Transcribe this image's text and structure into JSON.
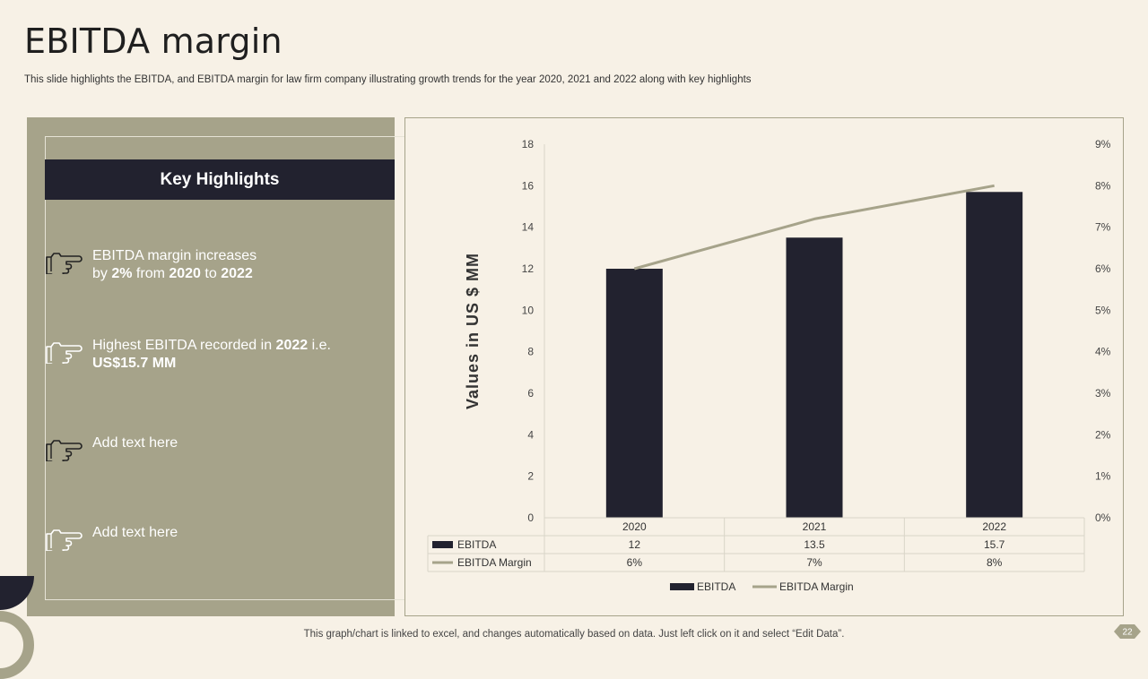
{
  "page": {
    "title": "EBITDA margin",
    "subtitle": "This slide highlights the EBITDA,  and EBITDA  margin for law firm company illustrating growth trends for the year 2020, 2021 and 2022 along with key highlights",
    "footer": "This graph/chart is linked to excel,  and changes automatically based on data. Just left click on it and select “Edit Data”.",
    "page_number": "22"
  },
  "highlights": {
    "heading": "Key Highlights",
    "items": [
      {
        "icon": "pointing-hand-icon",
        "line1_pre": "EBITDA margin increases",
        "line2_pre": "by ",
        "b1": "2%",
        "mid": " from ",
        "b2": "2020",
        "mid2": " to ",
        "b3": "2022"
      },
      {
        "icon": "pointing-hand-icon",
        "line1_pre": "Highest EBITDA recorded in ",
        "b1": "2022",
        "line1_post": " i.e.",
        "b2": "US$15.7 MM"
      },
      {
        "icon": "pointing-hand-icon",
        "text": "Add text here"
      },
      {
        "icon": "pointing-hand-icon",
        "text": "Add text here"
      }
    ]
  },
  "colors": {
    "dark": "#22222f",
    "olive": "#a6a38a",
    "background": "#f7f1e6"
  },
  "chart_data": {
    "type": "bar",
    "categories": [
      "2020",
      "2021",
      "2022"
    ],
    "series": [
      {
        "name": "EBITDA",
        "kind": "bar",
        "axis": "left",
        "values": [
          12,
          13.5,
          15.7
        ],
        "labels": [
          "12",
          "13.5",
          "15.7"
        ]
      },
      {
        "name": "EBITDA Margin",
        "kind": "line",
        "axis": "right",
        "values": [
          6,
          7.2,
          8
        ],
        "labels": [
          "6%",
          "7%",
          "8%"
        ]
      }
    ],
    "ylabel": "Values in US $ MM",
    "ylim": [
      0,
      18
    ],
    "yticks": [
      "0",
      "2",
      "4",
      "6",
      "8",
      "10",
      "12",
      "14",
      "16",
      "18"
    ],
    "y2lim": [
      0,
      9
    ],
    "y2ticks": [
      "0%",
      "1%",
      "2%",
      "3%",
      "4%",
      "5%",
      "6%",
      "7%",
      "8%",
      "9%"
    ],
    "legend": [
      "EBITDA",
      "EBITDA Margin"
    ],
    "legend_position": "bottom",
    "data_table": true
  }
}
